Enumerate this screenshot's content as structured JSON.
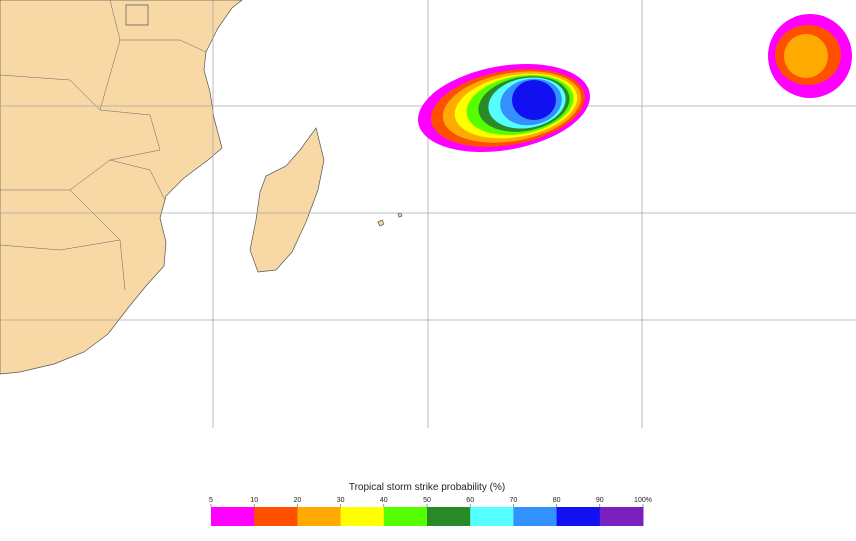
{
  "legend": {
    "title": "Tropical storm strike probability (%)",
    "ticks": [
      5,
      10,
      20,
      30,
      40,
      50,
      60,
      70,
      80,
      90,
      {
        "value": 100,
        "label": "100%"
      }
    ],
    "colors": [
      "#ff00ff",
      "#ff5000",
      "#ffaa00",
      "#ffff00",
      "#55ff00",
      "#2a8a2a",
      "#55ffff",
      "#3390ff",
      "#1010f0",
      "#7a20c0"
    ]
  }
}
